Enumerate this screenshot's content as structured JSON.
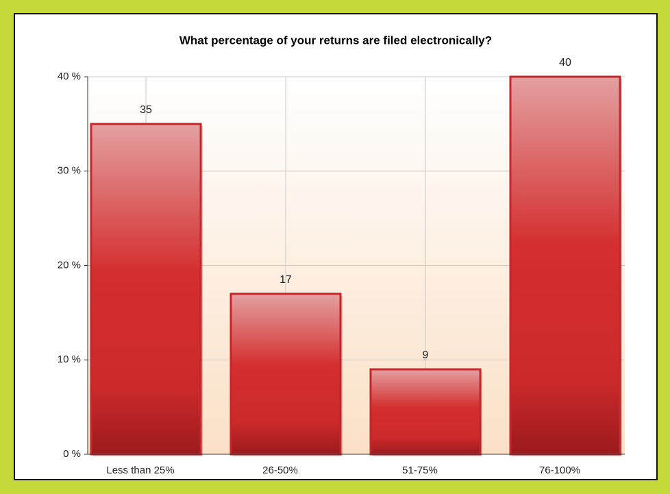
{
  "chart_data": {
    "type": "bar",
    "title": "What percentage of your returns are filed electronically?",
    "categories": [
      "Less than 25%",
      "26-50%",
      "51-75%",
      "76-100%"
    ],
    "values": [
      35,
      17,
      9,
      40
    ],
    "color": "#d42e2e",
    "ylim": [
      0,
      40
    ],
    "yticks": [
      {
        "value": 0,
        "label": "0 %"
      },
      {
        "value": 10,
        "label": "10 %"
      },
      {
        "value": 20,
        "label": "20 %"
      },
      {
        "value": 30,
        "label": "30 %"
      },
      {
        "value": 40,
        "label": "40 %"
      }
    ],
    "grid": true
  }
}
